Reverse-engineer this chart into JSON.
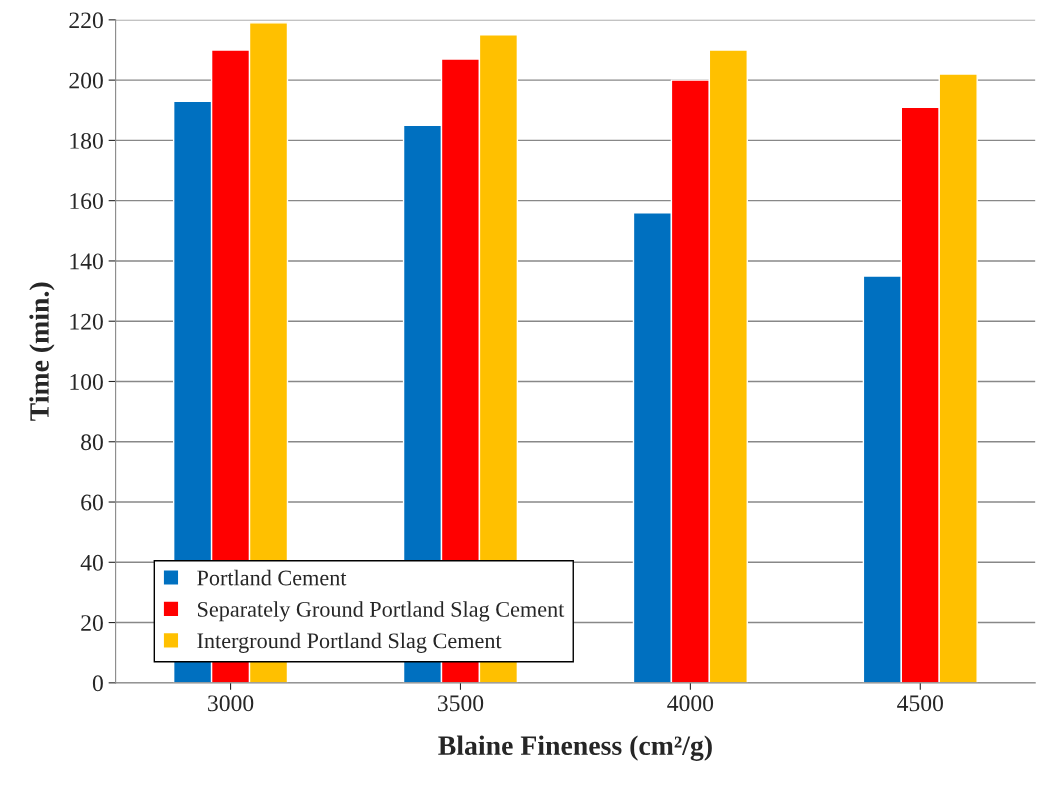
{
  "chart_data": {
    "type": "bar",
    "xlabel": "Blaine Fineness (cm²/g)",
    "ylabel": "Time (min.)",
    "categories": [
      "3000",
      "3500",
      "4000",
      "4500"
    ],
    "series": [
      {
        "name": "Portland Cement",
        "color": "#0070c0",
        "values": [
          193,
          185,
          156,
          135
        ]
      },
      {
        "name": "Separately Ground Portland Slag Cement",
        "color": "#ff0000",
        "values": [
          210,
          207,
          200,
          191
        ]
      },
      {
        "name": "Interground Portland Slag Cement",
        "color": "#ffc000",
        "values": [
          219,
          215,
          210,
          202
        ]
      }
    ],
    "ylim": [
      0,
      220
    ],
    "yticks": [
      0,
      20,
      40,
      60,
      80,
      100,
      120,
      140,
      160,
      180,
      200,
      220
    ],
    "grid": "y",
    "legend": "bottom left"
  }
}
